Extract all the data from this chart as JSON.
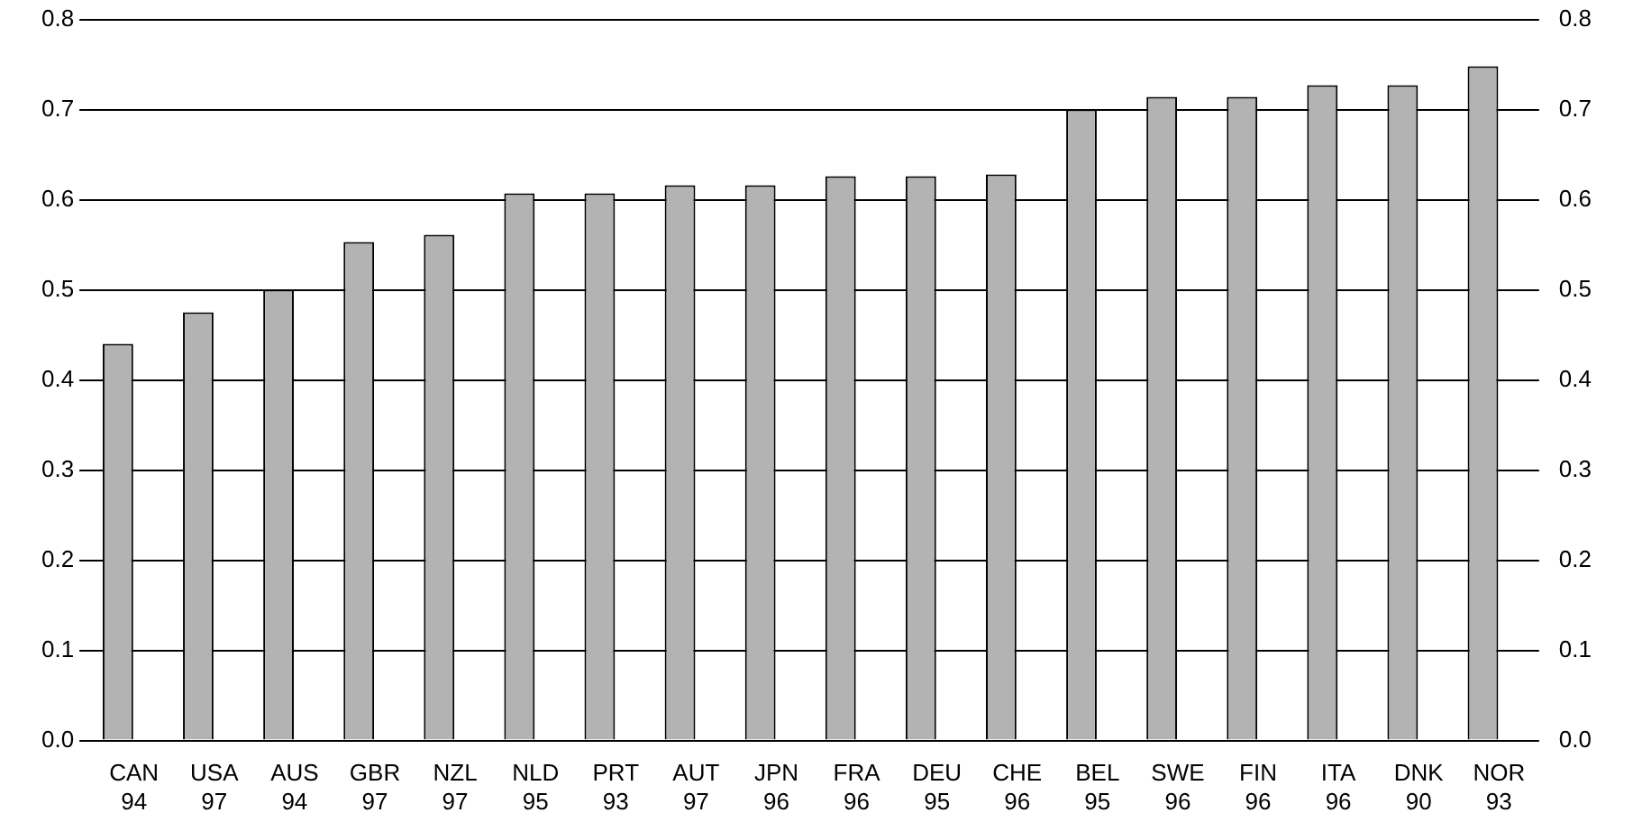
{
  "chart_data": {
    "type": "bar",
    "categories": [
      "CAN 94",
      "USA 97",
      "AUS 94",
      "GBR 97",
      "NZL 97",
      "NLD 95",
      "PRT 93",
      "AUT 97",
      "JPN 96",
      "FRA 96",
      "DEU 95",
      "CHE 96",
      "BEL 95",
      "SWE 96",
      "FIN 96",
      "ITA 96",
      "DNK 90",
      "NOR 93"
    ],
    "values": [
      0.44,
      0.475,
      0.5,
      0.553,
      0.561,
      0.607,
      0.607,
      0.616,
      0.616,
      0.626,
      0.626,
      0.628,
      0.7,
      0.714,
      0.714,
      0.727,
      0.727,
      0.748
    ],
    "color": "#b3b3b3",
    "ylim": [
      0,
      0.8
    ],
    "yticks": [
      {
        "value": 0,
        "label": "0.0"
      },
      0.1,
      0.2,
      0.3,
      0.4,
      0.5,
      0.6,
      0.7,
      0.8
    ],
    "y2lim": [
      0,
      0.8
    ],
    "y2ticks": [
      {
        "value": 0,
        "label": "0.0"
      },
      0.1,
      0.2,
      0.3,
      0.4,
      0.5,
      0.6,
      0.7,
      0.8
    ],
    "grid": "y"
  }
}
